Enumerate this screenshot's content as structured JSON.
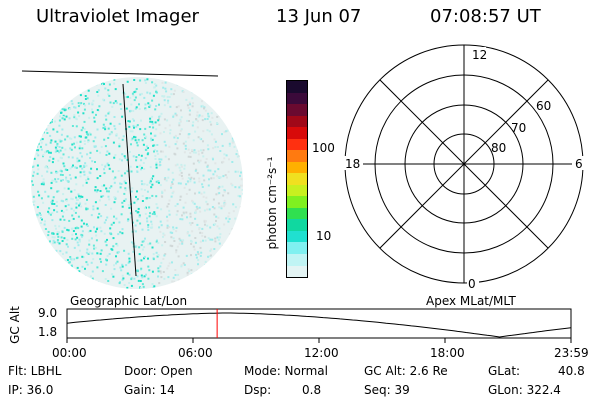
{
  "header": {
    "instrument": "Ultraviolet Imager",
    "date": "13 Jun 07",
    "time": "07:08:57 UT"
  },
  "colorbar": {
    "unit_label": "photon cm⁻²s⁻¹",
    "ticks": [
      "100",
      "10"
    ],
    "colors": [
      "#1a0a2e",
      "#3b0a3a",
      "#6a0a30",
      "#a00818",
      "#d80a0a",
      "#ff3010",
      "#ff7a10",
      "#ffb000",
      "#f0e020",
      "#c8f020",
      "#80f020",
      "#30e050",
      "#10d8a0",
      "#20e0d0",
      "#80f0f0",
      "#c0f4f4",
      "#e4f4f4"
    ]
  },
  "polar_plot": {
    "mlt_labels": {
      "top": "12",
      "left": "18",
      "right": "6",
      "bottom": "0"
    },
    "lat_labels": [
      "80",
      "70",
      "60"
    ]
  },
  "timeline": {
    "left_label": "Geographic Lat/Lon",
    "right_label": "Apex MLat/MLT",
    "axis_title": "GC Alt",
    "y_ticks": [
      "9.0",
      "1.8"
    ],
    "x_ticks": [
      "00:00",
      "06:00",
      "12:00",
      "18:00",
      "23:59"
    ],
    "marker_time_hours": 7.149,
    "marker_color": "#ff0000"
  },
  "status": {
    "flt": "Flt: LBHL",
    "ip": "IP: 36.0",
    "door": "Door: Open",
    "gain": "Gain: 14",
    "mode": "Mode: Normal",
    "dsp": "Dsp:",
    "dsp_val": "0.8",
    "gc_alt": "GC Alt: 2.6 Re",
    "seq": "Seq: 39",
    "glat": "GLat:",
    "glat_val": "40.8",
    "glon": "GLon: 322.4"
  }
}
